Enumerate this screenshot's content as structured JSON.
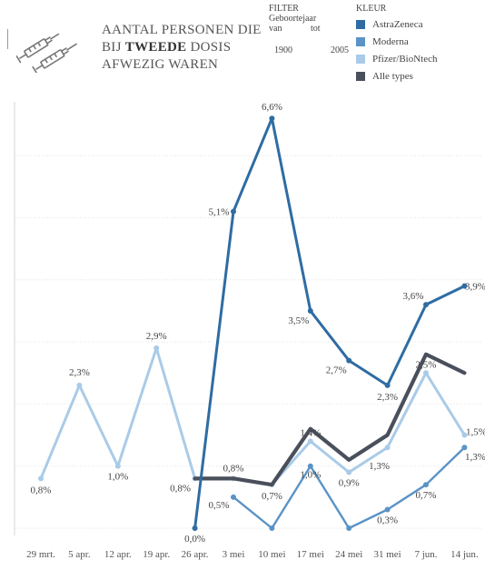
{
  "header": {
    "title_line1": "AANTAL PERSONEN DIE",
    "title_line2_pre": "BIJ ",
    "title_line2_bold": "TWEEDE",
    "title_line2_post": " DOSIS",
    "title_line3": "AFWEZIG WAREN",
    "logo_icon": "syringes-icon"
  },
  "filter": {
    "label": "FILTER",
    "field": "Geboortejaar",
    "from_label": "van",
    "to_label": "tot",
    "from_value": "1900",
    "to_value": "2005"
  },
  "legend": {
    "title": "KLEUR",
    "items": [
      {
        "label": "AstraZeneca",
        "color": "#2f6ca3"
      },
      {
        "label": "Moderna",
        "color": "#5a93c6"
      },
      {
        "label": "Pfizer/BioNtech",
        "color": "#a9cbe8"
      },
      {
        "label": "Alle types",
        "color": "#4a4f5c"
      }
    ]
  },
  "chart_data": {
    "type": "line",
    "categories": [
      "29 mrt.",
      "5 apr.",
      "12 apr.",
      "19 apr.",
      "26 apr.",
      "3 mei",
      "10 mei",
      "17 mei",
      "24 mei",
      "31 mei",
      "7 jun.",
      "14 jun."
    ],
    "ylim": [
      0,
      7
    ],
    "grid": true,
    "series": [
      {
        "name": "AstraZeneca",
        "color": "#2f6ca3",
        "values": [
          null,
          null,
          null,
          null,
          0.0,
          5.1,
          6.6,
          3.5,
          2.7,
          2.3,
          3.6,
          3.9
        ],
        "labels": [
          null,
          null,
          null,
          null,
          "0,0%",
          "5,1%",
          "6,6%",
          "3,5%",
          "2,7%",
          "2,3%",
          "3,6%",
          "3,9%"
        ]
      },
      {
        "name": "Moderna",
        "color": "#5a93c6",
        "values": [
          null,
          null,
          null,
          null,
          null,
          0.5,
          0.0,
          1.0,
          0.0,
          0.3,
          0.7,
          1.3
        ],
        "labels": [
          null,
          null,
          null,
          null,
          null,
          "0,5%",
          null,
          "1,0%",
          null,
          "0,3%",
          "0,7%",
          "1,3%"
        ]
      },
      {
        "name": "Pfizer/BioNtech",
        "color": "#a9cbe8",
        "values": [
          0.8,
          2.3,
          1.0,
          2.9,
          0.8,
          0.8,
          0.7,
          1.4,
          0.9,
          1.3,
          2.5,
          1.5
        ],
        "labels": [
          "0,8%",
          "2,3%",
          "1,0%",
          "2,9%",
          "0,8%",
          "0,8%",
          "0,7%",
          "1,4%",
          "0,9%",
          "1,3%",
          "2,5%",
          "1,5%"
        ]
      },
      {
        "name": "Alle types",
        "color": "#4a4f5c",
        "values": [
          null,
          null,
          null,
          null,
          0.8,
          0.8,
          0.7,
          1.6,
          1.1,
          1.5,
          2.8,
          2.5
        ],
        "labels": [
          null,
          null,
          null,
          null,
          null,
          null,
          null,
          null,
          null,
          null,
          null,
          null
        ]
      }
    ]
  }
}
